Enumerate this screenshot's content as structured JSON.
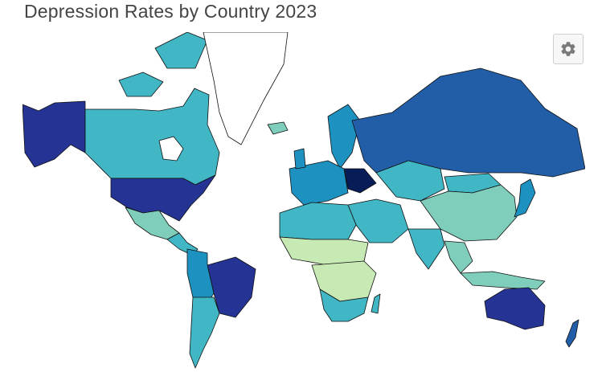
{
  "title": "Depression Rates by Country 2023",
  "toolbar": {
    "settings_icon": "gear-icon"
  },
  "colorscale": [
    "#edf8b1",
    "#c7e9b4",
    "#7fcdbb",
    "#41b6c4",
    "#1d91c0",
    "#225ea8",
    "#253494",
    "#081d58"
  ],
  "map": {
    "projection": "mercator",
    "regions": [
      {
        "name": "alaska",
        "level": 6
      },
      {
        "name": "canada",
        "level": 3
      },
      {
        "name": "greenland",
        "level": -1
      },
      {
        "name": "usa",
        "level": 6
      },
      {
        "name": "mexico",
        "level": 2
      },
      {
        "name": "central-america",
        "level": 3
      },
      {
        "name": "brazil",
        "level": 6
      },
      {
        "name": "south-america-west",
        "level": 4
      },
      {
        "name": "argentina",
        "level": 3
      },
      {
        "name": "scandinavia",
        "level": 4
      },
      {
        "name": "western-europe",
        "level": 4
      },
      {
        "name": "ukraine",
        "level": 7
      },
      {
        "name": "russia",
        "level": 5
      },
      {
        "name": "central-asia",
        "level": 3
      },
      {
        "name": "china",
        "level": 2
      },
      {
        "name": "mongolia",
        "level": 3
      },
      {
        "name": "india",
        "level": 3
      },
      {
        "name": "middle-east",
        "level": 3
      },
      {
        "name": "north-africa",
        "level": 3
      },
      {
        "name": "sahel",
        "level": 1
      },
      {
        "name": "central-africa",
        "level": 1
      },
      {
        "name": "southern-africa",
        "level": 3
      },
      {
        "name": "southeast-asia",
        "level": 2
      },
      {
        "name": "indonesia",
        "level": 2
      },
      {
        "name": "japan",
        "level": 4
      },
      {
        "name": "australia",
        "level": 6
      },
      {
        "name": "new-zealand",
        "level": 5
      },
      {
        "name": "iceland",
        "level": 2
      }
    ]
  }
}
